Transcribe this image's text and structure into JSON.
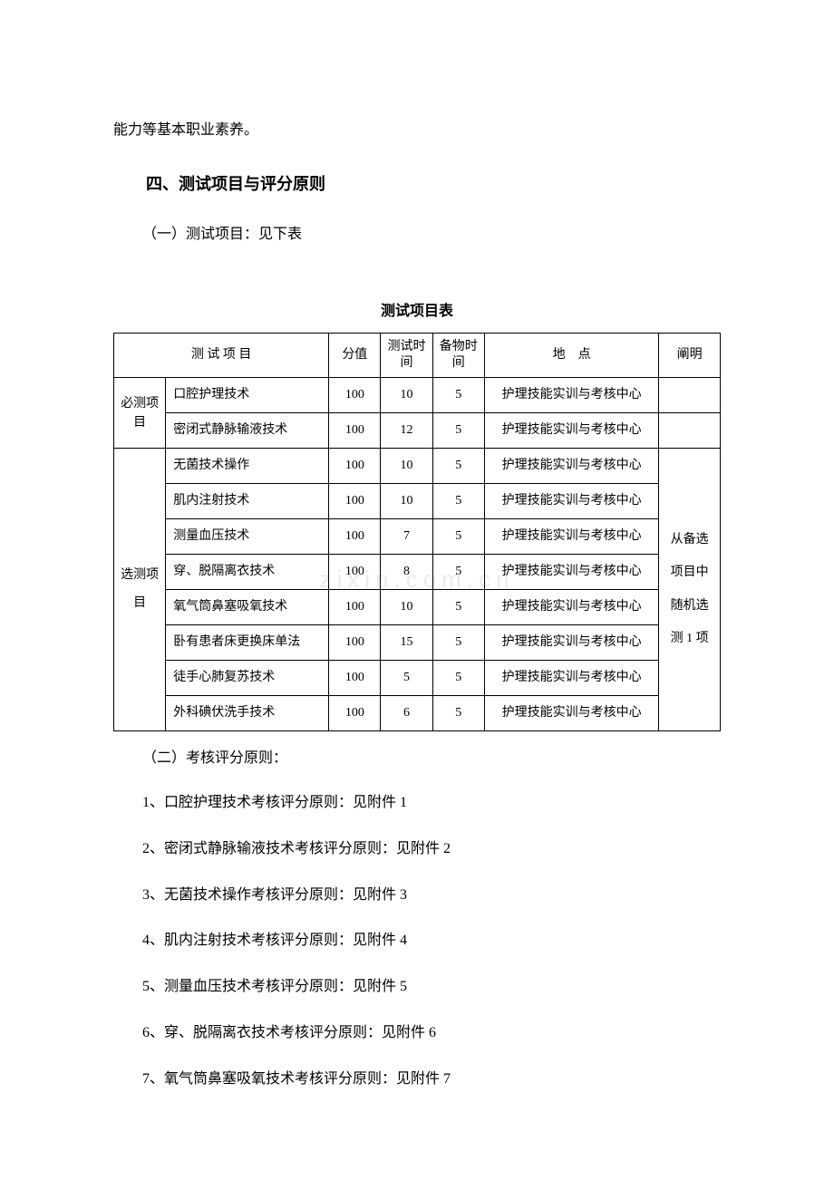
{
  "topLine": "能力等基本职业素养。",
  "sectionHeading": "四、测试项目与评分原则",
  "subHeading1": "（一）测试项目：见下表",
  "tableTitle": "测试项目表",
  "table": {
    "headers": {
      "project": "测 试 项 目",
      "score": "分值",
      "testTime": "测试时间",
      "prepTime": "备物时间",
      "location": "地　点",
      "note": "阐明"
    },
    "groups": [
      {
        "category": "必测项目",
        "rows": [
          {
            "name": "口腔护理技术",
            "score": 100,
            "testTime": 10,
            "prepTime": 5,
            "location": "护理技能实训与考核中心",
            "note": ""
          },
          {
            "name": "密闭式静脉输液技术",
            "score": 100,
            "testTime": 12,
            "prepTime": 5,
            "location": "护理技能实训与考核中心",
            "note": ""
          }
        ]
      },
      {
        "category": "选测项目",
        "noteLines": [
          "从备选",
          "项目中",
          "随机选",
          "测 1 项"
        ],
        "rows": [
          {
            "name": "无菌技术操作",
            "score": 100,
            "testTime": 10,
            "prepTime": 5,
            "location": "护理技能实训与考核中心"
          },
          {
            "name": "肌内注射技术",
            "score": 100,
            "testTime": 10,
            "prepTime": 5,
            "location": "护理技能实训与考核中心"
          },
          {
            "name": "测量血压技术",
            "score": 100,
            "testTime": 7,
            "prepTime": 5,
            "location": "护理技能实训与考核中心"
          },
          {
            "name": "穿、脱隔离衣技术",
            "score": 100,
            "testTime": 8,
            "prepTime": 5,
            "location": "护理技能实训与考核中心"
          },
          {
            "name": "氧气筒鼻塞吸氧技术",
            "score": 100,
            "testTime": 10,
            "prepTime": 5,
            "location": "护理技能实训与考核中心"
          },
          {
            "name": "卧有患者床更换床单法",
            "score": 100,
            "testTime": 15,
            "prepTime": 5,
            "location": "护理技能实训与考核中心"
          },
          {
            "name": "徒手心肺复苏技术",
            "score": 100,
            "testTime": 5,
            "prepTime": 5,
            "location": "护理技能实训与考核中心"
          },
          {
            "name": "外科碘伏洗手技术",
            "score": 100,
            "testTime": 6,
            "prepTime": 5,
            "location": "护理技能实训与考核中心"
          }
        ]
      }
    ]
  },
  "subHeading2": "（二）考核评分原则：",
  "listItems": [
    "1、口腔护理技术考核评分原则：见附件 1",
    "2、密闭式静脉输液技术考核评分原则：见附件 2",
    "3、无菌技术操作考核评分原则：见附件 3",
    "4、肌内注射技术考核评分原则：见附件 4",
    "5、测量血压技术考核评分原则：见附件 5",
    "6、穿、脱隔离衣技术考核评分原则：见附件 6",
    "7、氧气筒鼻塞吸氧技术考核评分原则：见附件 7"
  ],
  "watermark": "zixin.com.cn",
  "style": {
    "page_bg": "#ffffff",
    "text_color": "#000000",
    "border_color": "#000000",
    "body_font": "SimSun",
    "heading_font": "SimHei",
    "body_fontsize": 16,
    "heading_fontsize": 18,
    "table_fontsize": 14,
    "watermark_color": "rgba(0,0,0,0.08)"
  }
}
